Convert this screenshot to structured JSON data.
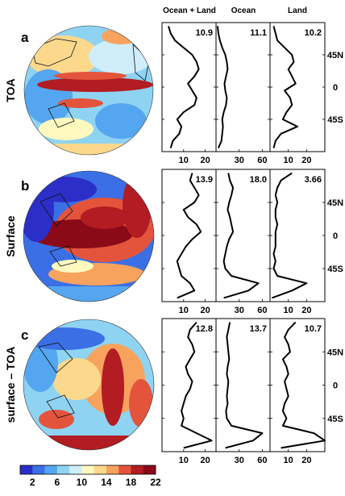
{
  "colorbar": {
    "ticks": [
      "2",
      "6",
      "10",
      "14",
      "18",
      "22"
    ],
    "colors": [
      "#2b2fc8",
      "#3b6fe6",
      "#55a6f0",
      "#8fd3f2",
      "#cfeefa",
      "#fff9c0",
      "#fcd88c",
      "#f7a35e",
      "#e4543c",
      "#b21c22",
      "#8a0a18"
    ]
  },
  "columns": {
    "titles": [
      "Ocean + Land",
      "Ocean",
      "Land"
    ],
    "xticks": [
      [
        "10",
        "20"
      ],
      [
        "30",
        "60"
      ],
      [
        "10",
        "20"
      ]
    ]
  },
  "lat_ticks": [
    "45N",
    "0",
    "45S"
  ],
  "rows": [
    {
      "letter": "a",
      "label": "TOA",
      "values": [
        "10.9",
        "11.1",
        "10.2"
      ]
    },
    {
      "letter": "b",
      "label": "Surface",
      "values": [
        "13.9",
        "18.0",
        "3.66"
      ]
    },
    {
      "letter": "c",
      "label": "surface – TOA",
      "values": [
        "12.8",
        "13.7",
        "10.7"
      ]
    }
  ],
  "chart_data": {
    "type": "line",
    "y_axis": "latitude",
    "ylim": [
      -90,
      90
    ],
    "lat": [
      85,
      75,
      65,
      55,
      45,
      35,
      25,
      15,
      5,
      -5,
      -15,
      -25,
      -35,
      -45,
      -55,
      -65,
      -75,
      -85
    ],
    "panels": [
      {
        "row": "a",
        "columns": [
          {
            "title": "Ocean + Land",
            "xlim": [
              0,
              25
            ],
            "x": [
              3,
              4,
              6,
              10,
              14,
              16,
              17,
              15,
              12,
              14,
              16,
              15,
              10,
              7,
              9,
              8,
              5,
              4
            ]
          },
          {
            "title": "Ocean",
            "xlim": [
              0,
              70
            ],
            "x": [
              2,
              3,
              5,
              8,
              12,
              14,
              15,
              13,
              11,
              12,
              14,
              13,
              10,
              8,
              9,
              8,
              7,
              3
            ]
          },
          {
            "title": "Land",
            "xlim": [
              0,
              30
            ],
            "x": [
              2,
              3,
              4,
              8,
              12,
              13,
              10,
              12,
              14,
              8,
              11,
              12,
              9,
              7,
              15,
              6,
              3,
              2
            ]
          }
        ]
      },
      {
        "row": "b",
        "columns": [
          {
            "title": "Ocean + Land",
            "xlim": [
              0,
              25
            ],
            "x": [
              14,
              13,
              15,
              17,
              15,
              10,
              12,
              16,
              18,
              14,
              11,
              9,
              7,
              8,
              9,
              13,
              15,
              7
            ]
          },
          {
            "title": "Ocean",
            "xlim": [
              0,
              70
            ],
            "x": [
              16,
              18,
              22,
              20,
              17,
              15,
              18,
              20,
              22,
              17,
              14,
              12,
              10,
              12,
              20,
              55,
              42,
              10
            ]
          },
          {
            "title": "Land",
            "xlim": [
              0,
              30
            ],
            "x": [
              12,
              6,
              4,
              3,
              4,
              3,
              3,
              4,
              3,
              3,
              3,
              2,
              3,
              2,
              4,
              20,
              12,
              1
            ]
          }
        ]
      },
      {
        "row": "c",
        "columns": [
          {
            "title": "Ocean + Land",
            "xlim": [
              0,
              25
            ],
            "x": [
              16,
              13,
              12,
              14,
              15,
              13,
              11,
              12,
              14,
              13,
              11,
              10,
              9,
              10,
              9,
              16,
              23,
              10
            ]
          },
          {
            "title": "Ocean",
            "xlim": [
              0,
              70
            ],
            "x": [
              18,
              16,
              14,
              15,
              16,
              17,
              15,
              14,
              16,
              15,
              14,
              15,
              13,
              14,
              20,
              60,
              48,
              12
            ]
          },
          {
            "title": "Land",
            "xlim": [
              0,
              30
            ],
            "x": [
              14,
              10,
              8,
              10,
              11,
              7,
              9,
              10,
              8,
              9,
              10,
              8,
              7,
              9,
              7,
              24,
              30,
              6
            ]
          }
        ]
      }
    ]
  }
}
